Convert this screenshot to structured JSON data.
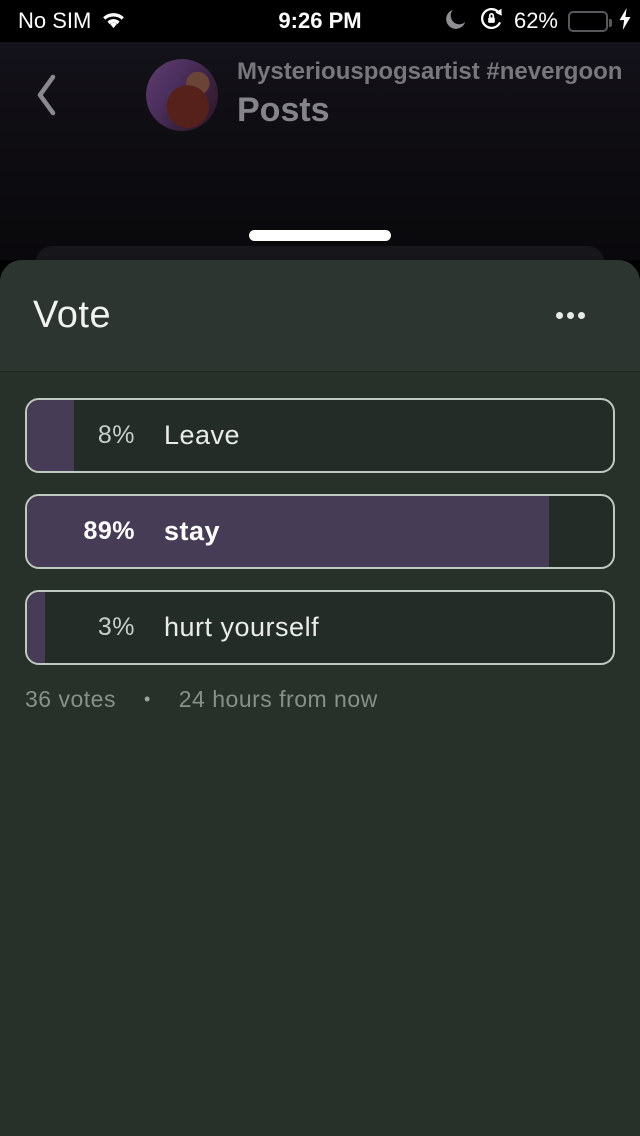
{
  "status_bar": {
    "carrier": "No SIM",
    "time": "9:26 PM",
    "battery_percent": "62%",
    "battery_color": "#5ad35e"
  },
  "header": {
    "username": "Mysteriouspogsartist #nevergoon",
    "subtitle": "Posts"
  },
  "sheet": {
    "title": "Vote",
    "poll": {
      "options": [
        {
          "percent": "8%",
          "label": "Leave",
          "fill": 8,
          "selected": false
        },
        {
          "percent": "89%",
          "label": "stay",
          "fill": 89,
          "selected": true
        },
        {
          "percent": "3%",
          "label": "hurt yourself",
          "fill": 3,
          "selected": false
        }
      ],
      "votes": "36 votes",
      "separator": "•",
      "time_remaining": "24 hours from now"
    }
  },
  "colors": {
    "sheet_background": "#273029",
    "sheet_header_background": "#2c352f",
    "poll_fill_purple": "#473c55",
    "option_border": "#bec9c2",
    "battery_green": "#5ad35e"
  }
}
